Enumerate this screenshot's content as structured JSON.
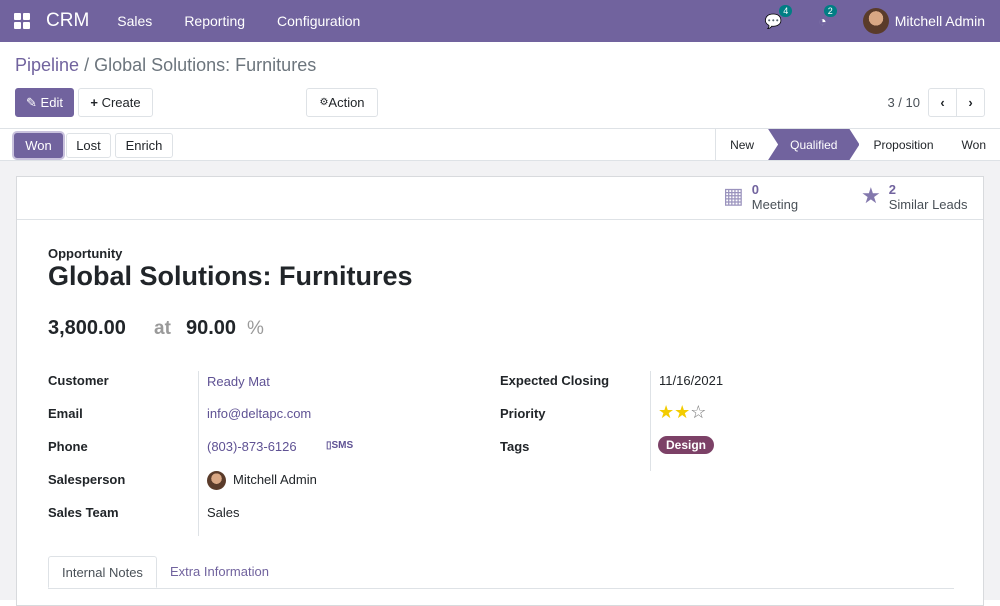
{
  "navbar": {
    "app": "CRM",
    "menus": [
      "Sales",
      "Reporting",
      "Configuration"
    ],
    "messages_count": "4",
    "activities_count": "2",
    "user": "Mitchell Admin"
  },
  "breadcrumb": {
    "parent": "Pipeline",
    "separator": "/",
    "current": "Global Solutions: Furnitures"
  },
  "toolbar": {
    "edit": "Edit",
    "create": "Create",
    "action": "Action",
    "pager": "3 / 10"
  },
  "status_buttons": {
    "won": "Won",
    "lost": "Lost",
    "enrich": "Enrich"
  },
  "stages": [
    {
      "label": "New",
      "active": false
    },
    {
      "label": "Qualified",
      "active": true
    },
    {
      "label": "Proposition",
      "active": false
    },
    {
      "label": "Won",
      "active": false
    }
  ],
  "smart_buttons": {
    "meeting_count": "0",
    "meeting_label": "Meeting",
    "similar_count": "2",
    "similar_label": "Similar Leads"
  },
  "record": {
    "type": "Opportunity",
    "name": "Global Solutions: Furnitures",
    "revenue": "3,800.00",
    "at": "at",
    "probability": "90.00",
    "percent": "%"
  },
  "fields": {
    "customer_label": "Customer",
    "customer": "Ready Mat",
    "email_label": "Email",
    "email": "info@deltapc.com",
    "phone_label": "Phone",
    "phone": "(803)-873-6126",
    "sms": "SMS",
    "salesperson_label": "Salesperson",
    "salesperson": "Mitchell Admin",
    "team_label": "Sales Team",
    "team": "Sales",
    "closing_label": "Expected Closing",
    "closing": "11/16/2021",
    "priority_label": "Priority",
    "priority": 2,
    "priority_max": 3,
    "tags_label": "Tags",
    "tag": "Design"
  },
  "tabs": [
    "Internal Notes",
    "Extra Information"
  ],
  "colors": {
    "brand": "#71639e",
    "tag": "#7c4167",
    "star": "#f3cc00"
  }
}
